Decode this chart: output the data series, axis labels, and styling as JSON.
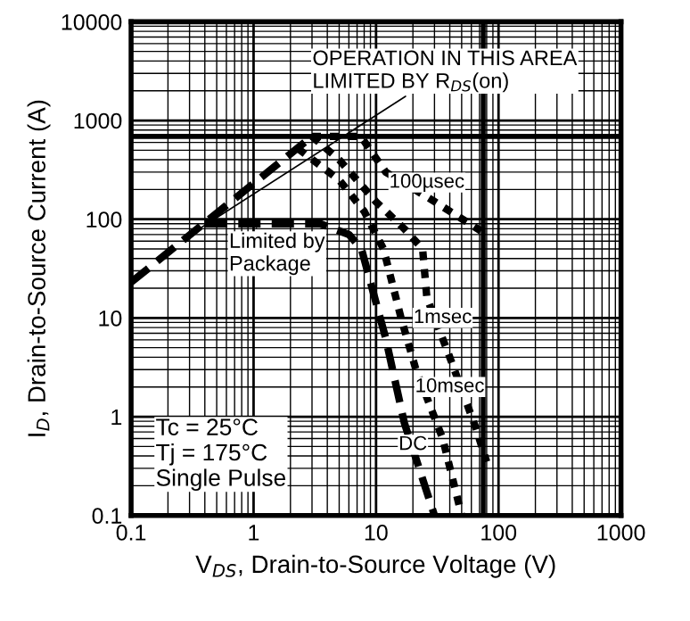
{
  "chart_data": {
    "type": "line",
    "xlabel": "V$_{DS}$, Drain-to-Source Voltage (V)",
    "ylabel": "I$_{D}$, Drain-to-Source Current (A)",
    "log": "xy",
    "xlim": [
      0.1,
      1000
    ],
    "ylim": [
      0.1,
      10000
    ],
    "xticks": [
      0.1,
      1,
      10,
      100,
      1000
    ],
    "yticks": [
      0.1,
      1,
      10,
      100,
      1000,
      10000
    ],
    "grid": true,
    "legend": false,
    "series": [
      {
        "color": "#000000",
        "line_style": "dashed",
        "x": [
          0.1,
          3
        ],
        "values": [
          23,
          690
        ]
      },
      {
        "name": "100µsec",
        "color": "#000000",
        "line_style": "dotted",
        "x": [
          3,
          7.5,
          12,
          29,
          72
        ],
        "values": [
          690,
          690,
          300,
          155,
          76
        ]
      },
      {
        "name": "1msec",
        "color": "#000000",
        "line_style": "dotted",
        "x": [
          3,
          5,
          10,
          17,
          24,
          26,
          40,
          65,
          80
        ],
        "values": [
          690,
          400,
          150,
          80,
          50,
          16,
          4,
          0.78,
          0.35
        ]
      },
      {
        "name": "10msec",
        "color": "#000000",
        "line_style": "dotted",
        "x": [
          2.3,
          5,
          8,
          11.5,
          16,
          21,
          35,
          50
        ],
        "values": [
          520,
          250,
          120,
          50,
          10,
          3.1,
          0.6,
          0.1
        ]
      },
      {
        "name": "DC",
        "color": "#000000",
        "line_style": "dashed",
        "x": [
          0.4,
          3.5,
          6,
          7.6,
          12,
          17,
          30
        ],
        "values": [
          90,
          90,
          70,
          50,
          6.2,
          0.87,
          0.1
        ]
      }
    ],
    "ref_lines": [
      {
        "axis": "y",
        "value": 690,
        "color": "#000000",
        "line_style": "solid"
      },
      {
        "axis": "x",
        "value": 75,
        "color": "#000000",
        "line_style": "solid"
      }
    ],
    "annotations": [
      {
        "text": "OPERATION IN THIS AREA\nLIMITED BY R$_{DS}$(on)",
        "x": 0.3,
        "y": 69
      },
      {
        "text": "Limited by\nPackage",
        "x": 1,
        "y": 90
      },
      "Tc = 25°C\nTj = 175°C\nSingle Pulse"
    ]
  }
}
